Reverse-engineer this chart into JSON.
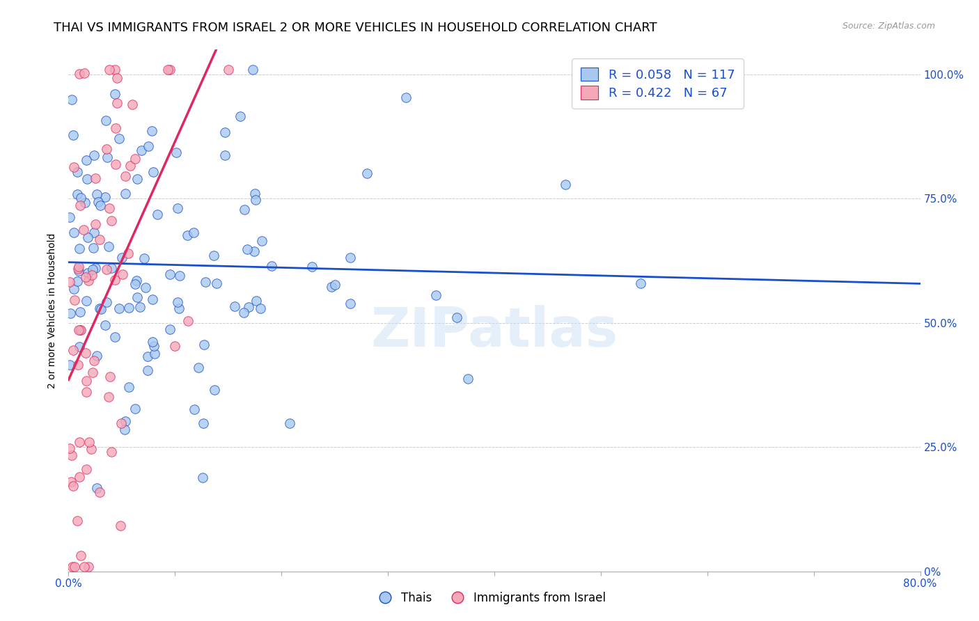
{
  "title": "THAI VS IMMIGRANTS FROM ISRAEL 2 OR MORE VEHICLES IN HOUSEHOLD CORRELATION CHART",
  "source": "Source: ZipAtlas.com",
  "ylabel": "2 or more Vehicles in Household",
  "x_min": 0.0,
  "x_max": 0.8,
  "y_min": 0.0,
  "y_max": 1.05,
  "thai_R": 0.058,
  "thai_N": 117,
  "israel_R": 0.422,
  "israel_N": 67,
  "blue_color": "#a8c8f0",
  "pink_color": "#f4a8b8",
  "blue_line_color": "#1a4fcc",
  "pink_line_color": "#e02860",
  "legend_label_thai": "Thais",
  "legend_label_israel": "Immigrants from Israel",
  "watermark": "ZIPatlas",
  "title_fontsize": 13,
  "label_fontsize": 10,
  "tick_fontsize": 11,
  "y_ticks": [
    0.0,
    0.25,
    0.5,
    0.75,
    1.0
  ],
  "y_tick_labels_right": [
    "0%",
    "25.0%",
    "50.0%",
    "75.0%",
    "100.0%"
  ],
  "x_ticks": [
    0.0,
    0.1,
    0.2,
    0.3,
    0.4,
    0.5,
    0.6,
    0.7,
    0.8
  ],
  "x_tick_labels_shown": {
    "0": "0.0%",
    "8": "80.0%"
  }
}
